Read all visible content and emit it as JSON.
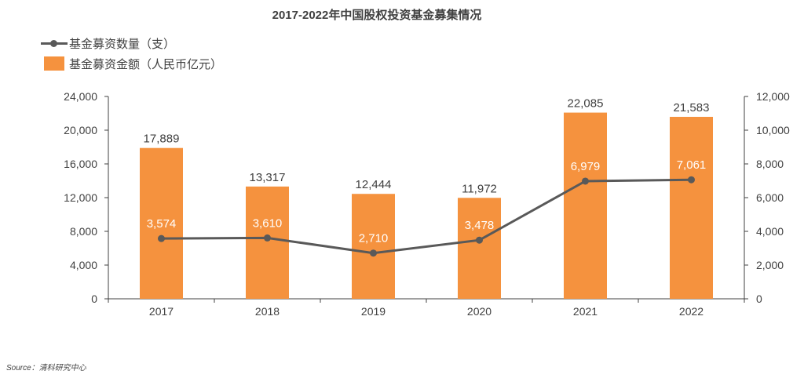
{
  "chart_data": {
    "type": "bar",
    "title": "2017-2022年中国股权投资基金募集情况",
    "categories": [
      "2017",
      "2018",
      "2019",
      "2020",
      "2021",
      "2022"
    ],
    "series": [
      {
        "name": "基金募资金额（人民币亿元）",
        "type": "bar",
        "axis": "left",
        "values": [
          17889,
          13317,
          12444,
          11972,
          22085,
          21583
        ],
        "labels": [
          "17,889",
          "13,317",
          "12,444",
          "11,972",
          "22,085",
          "21,583"
        ],
        "color": "#f5923e"
      },
      {
        "name": "基金募资数量（支）",
        "type": "line",
        "axis": "right",
        "values": [
          3574,
          3610,
          2710,
          3478,
          6979,
          7061
        ],
        "labels": [
          "3,574",
          "3,610",
          "2,710",
          "3,478",
          "6,979",
          "7,061"
        ],
        "color": "#595959"
      }
    ],
    "ylim_left": [
      0,
      24000
    ],
    "ylim_right": [
      0,
      12000
    ],
    "yticks_left": [
      "0",
      "4,000",
      "8,000",
      "12,000",
      "16,000",
      "20,000",
      "24,000"
    ],
    "yticks_right": [
      "0",
      "2,000",
      "4,000",
      "6,000",
      "8,000",
      "10,000",
      "12,000"
    ],
    "legend_position": "top-left",
    "grid": false
  },
  "legend": {
    "line_label": "基金募资数量（支）",
    "bar_label": "基金募资金额（人民币亿元）"
  },
  "source": "Source：清科研究中心"
}
